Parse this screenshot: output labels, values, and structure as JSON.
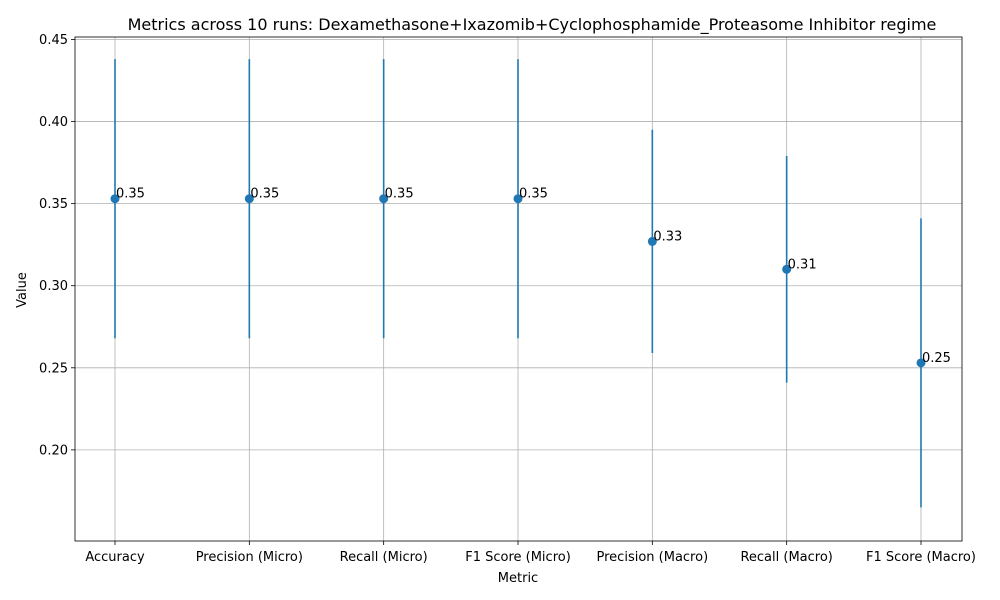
{
  "chart_data": {
    "type": "scatter",
    "title": "Metrics across 10 runs: Dexamethasone+Ixazomib+Cyclophosphamide_Proteasome Inhibitor regime",
    "xlabel": "Metric",
    "ylabel": "Value",
    "categories": [
      "Accuracy",
      "Precision (Micro)",
      "Recall (Micro)",
      "F1 Score (Micro)",
      "Precision (Macro)",
      "Recall (Macro)",
      "F1 Score (Macro)"
    ],
    "series": [
      {
        "values": [
          0.353,
          0.353,
          0.353,
          0.353,
          0.327,
          0.31,
          0.253
        ],
        "errors": [
          0.085,
          0.085,
          0.085,
          0.085,
          0.068,
          0.069,
          0.088
        ],
        "labels": [
          "0.35",
          "0.35",
          "0.35",
          "0.35",
          "0.33",
          "0.31",
          "0.25"
        ]
      }
    ],
    "ylim": [
      0.1445,
      0.4515
    ],
    "yticks": [
      0.2,
      0.25,
      0.3,
      0.35,
      0.4,
      0.45
    ],
    "ytick_labels": [
      "0.20",
      "0.25",
      "0.30",
      "0.35",
      "0.40",
      "0.45"
    ],
    "grid": true,
    "colors": {
      "series": "#1f77b4",
      "grid": "#b0b0b0",
      "axis": "#000000"
    }
  }
}
